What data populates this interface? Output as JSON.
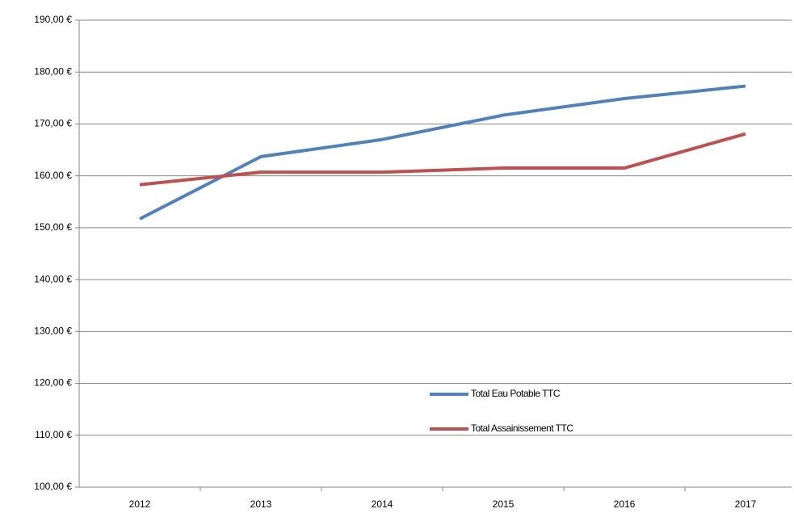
{
  "chart_data": {
    "type": "line",
    "categories": [
      "2012",
      "2013",
      "2014",
      "2015",
      "2016",
      "2017"
    ],
    "series": [
      {
        "name": "Total Eau Potable TTC",
        "color": "#4f81bd",
        "values": [
          151.7,
          163.7,
          167.0,
          171.7,
          174.9,
          177.3
        ]
      },
      {
        "name": "Total Assainissement TTC",
        "color": "#c0504d",
        "values": [
          158.3,
          160.7,
          160.7,
          161.5,
          161.5,
          168.1
        ]
      }
    ],
    "ylim": [
      100,
      190
    ],
    "yticks": [
      {
        "value": 100,
        "label": "100,00 €"
      },
      {
        "value": 110,
        "label": "110,00 €"
      },
      {
        "value": 120,
        "label": "120,00 €"
      },
      {
        "value": 130,
        "label": "130,00 €"
      },
      {
        "value": 140,
        "label": "140,00 €"
      },
      {
        "value": 150,
        "label": "150,00 €"
      },
      {
        "value": 160,
        "label": "160,00 €"
      },
      {
        "value": 170,
        "label": "170,00 €"
      },
      {
        "value": 180,
        "label": "180,00 €"
      },
      {
        "value": 190,
        "label": "190,00 €"
      }
    ],
    "grid": true
  }
}
